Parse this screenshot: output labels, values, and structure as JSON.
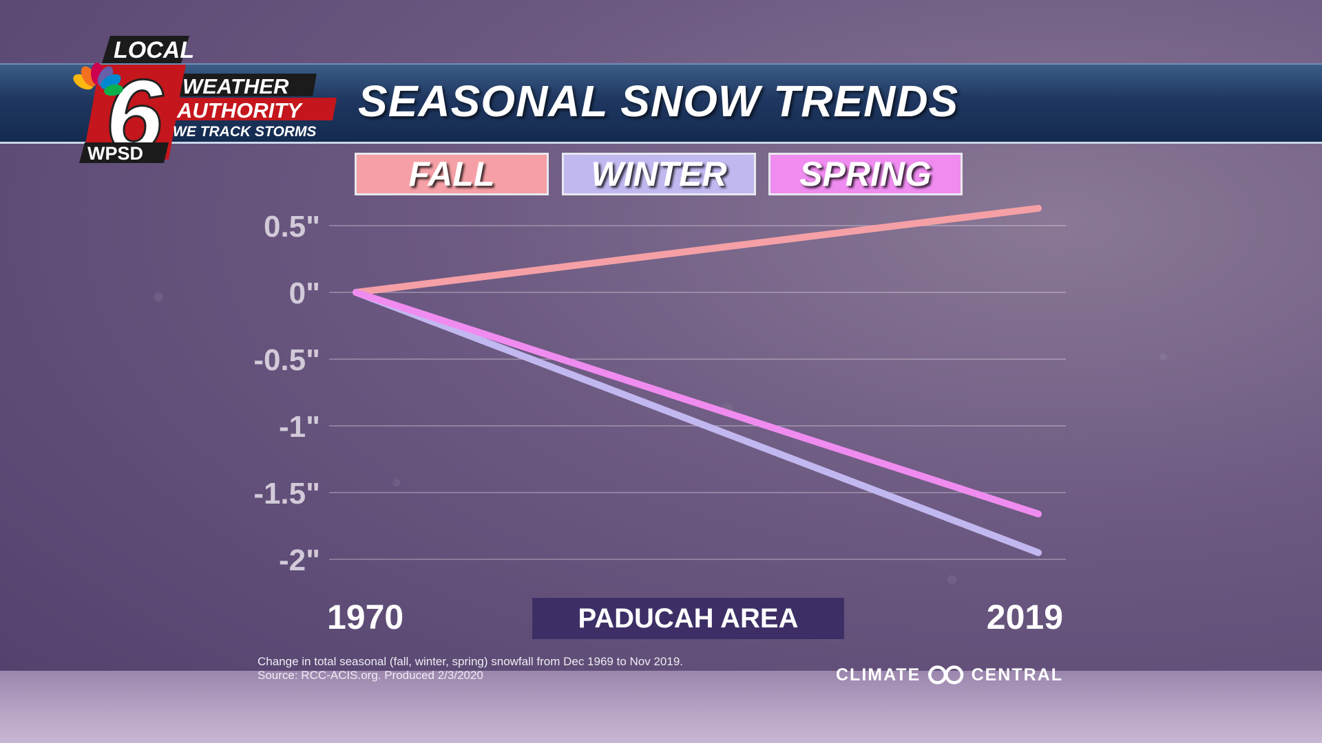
{
  "header": {
    "title": "SEASONAL SNOW TRENDS"
  },
  "logo": {
    "local": "LOCAL",
    "number": "6",
    "line1": "WEATHER",
    "line2": "AUTHORITY",
    "line3": "WE TRACK STORMS",
    "station": "WPSD"
  },
  "colors": {
    "fall": "#f5a0a6",
    "winter": "#c2b8f0",
    "spring": "#f08cf0",
    "area_box": "#3d2f66"
  },
  "area_label": "PADUCAH AREA",
  "footnote": {
    "line1": "Change in total seasonal (fall, winter, spring) snowfall from Dec 1969 to Nov 2019.",
    "line2": "Source: RCC-ACIS.org. Produced 2/3/2020"
  },
  "credit": {
    "left": "CLIMATE",
    "right": "CENTRAL"
  },
  "chart_data": {
    "type": "line",
    "title": "SEASONAL SNOW TRENDS",
    "x": [
      "1970",
      "2019"
    ],
    "series": [
      {
        "name": "FALL",
        "values": [
          0,
          0.63
        ]
      },
      {
        "name": "WINTER",
        "values": [
          0,
          -1.95
        ]
      },
      {
        "name": "SPRING",
        "values": [
          0,
          -1.66
        ]
      }
    ],
    "yticks": [
      0.5,
      0,
      -0.5,
      -1,
      -1.5,
      -2
    ],
    "ytick_labels": [
      "0.5\"",
      "0\"",
      "-0.5\"",
      "-1\"",
      "-1.5\"",
      "-2\""
    ],
    "ylim": [
      -2,
      0.5
    ],
    "grid": true,
    "legend_position": "top"
  }
}
